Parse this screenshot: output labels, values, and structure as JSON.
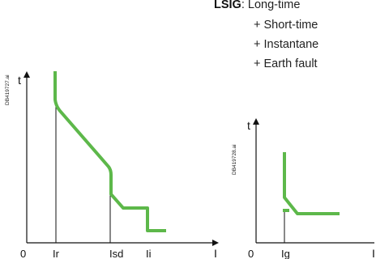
{
  "header": {
    "code": "LSIG",
    "items": [
      ": Long-time",
      "+ Short-time",
      "+ Instantane",
      "+ Earth fault"
    ]
  },
  "diagram_lsi": {
    "ref": "DB419727.ai",
    "y_axis_label": "t",
    "x_axis_label": "I",
    "origin_label": "0",
    "tick_labels": [
      "Ir",
      "Isd",
      "Ii"
    ]
  },
  "diagram_g": {
    "ref": "DB419728.ai",
    "y_axis_label": "t",
    "x_axis_label": "I",
    "origin_label": "0",
    "tick_labels": [
      "Ig"
    ]
  },
  "colors": {
    "curve": "#5db84a",
    "axis": "#111111"
  }
}
